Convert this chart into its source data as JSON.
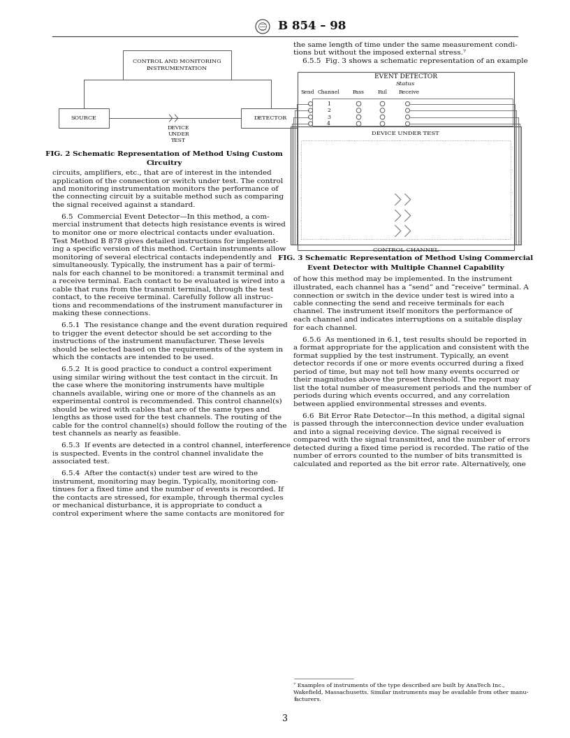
{
  "page_width": 8.16,
  "page_height": 10.56,
  "dpi": 100,
  "bg_color": "#ffffff",
  "header_title": "B 854 – 98",
  "page_number": "3",
  "fig2_caption_line1": "FIG. 2 Schematic Representation of Method Using Custom",
  "fig2_caption_line2": "Circuitry",
  "fig3_caption_line1": "FIG. 3 Schematic Representation of Method Using Commercial",
  "fig3_caption_line2": "Event Detector with Multiple Channel Capability",
  "footnote_line1": "⁷ Examples of instruments of the type described are built by AnaTech Inc.,",
  "footnote_line2": "Wakefield, Massachusetts. Similar instruments may be available from other manu-",
  "footnote_line3": "facturers.",
  "left_col_paragraphs": [
    "circuits, amplifiers, etc., that are of interest in the intended\napplication of the connection or switch under test. The control\nand monitoring instrumentation monitors the performance of\nthe connecting circuit by a suitable method such as comparing\nthe signal received against a standard.",
    "    6.5  Commercial Event Detector—In this method, a com-\nmercial instrument that detects high resistance events is wired\nto monitor one or more electrical contacts under evaluation.\nTest Method B 878 gives detailed instructions for implement-\ning a specific version of this method. Certain instruments allow\nmonitoring of several electrical contacts independently and\nsimultaneously. Typically, the instrument has a pair of termi-\nnals for each channel to be monitored: a transmit terminal and\na receive terminal. Each contact to be evaluated is wired into a\ncable that runs from the transmit terminal, through the test\ncontact, to the receive terminal. Carefully follow all instruc-\ntions and recommendations of the instrument manufacturer in\nmaking these connections.",
    "    6.5.1  The resistance change and the event duration required\nto trigger the event detector should be set according to the\ninstructions of the instrument manufacturer. These levels\nshould be selected based on the requirements of the system in\nwhich the contacts are intended to be used.",
    "    6.5.2  It is good practice to conduct a control experiment\nusing similar wiring without the test contact in the circuit. In\nthe case where the monitoring instruments have multiple\nchannels available, wiring one or more of the channels as an\nexperimental control is recommended. This control channel(s)\nshould be wired with cables that are of the same types and\nlengths as those used for the test channels. The routing of the\ncable for the control channel(s) should follow the routing of the\ntest channels as nearly as feasible.",
    "    6.5.3  If events are detected in a control channel, interference\nis suspected. Events in the control channel invalidate the\nassociated test.",
    "    6.5.4  After the contact(s) under test are wired to the\ninstrument, monitoring may begin. Typically, monitoring con-\ntinues for a fixed time and the number of events is recorded. If\nthe contacts are stressed, for example, through thermal cycles\nor mechanical disturbance, it is appropriate to conduct a\ncontrol experiment where the same contacts are monitored for"
  ],
  "right_top_lines": [
    "the same length of time under the same measurement condi-",
    "tions but without the imposed external stress.⁷",
    "    6.5.5  Fig. 3 shows a schematic representation of an example"
  ],
  "right_col_paragraphs": [
    "of how this method may be implemented. In the instrument\nillustrated, each channel has a “send” and “receive” terminal. A\nconnection or switch in the device under test is wired into a\ncable connecting the send and receive terminals for each\nchannel. The instrument itself monitors the performance of\neach channel and indicates interruptions on a suitable display\nfor each channel.",
    "    6.5.6  As mentioned in 6.1, test results should be reported in\na format appropriate for the application and consistent with the\nformat supplied by the test instrument. Typically, an event\ndetector records if one or more events occurred during a fixed\nperiod of time, but may not tell how many events occurred or\ntheir magnitudes above the preset threshold. The report may\nlist the total number of measurement periods and the number of\nperiods during which events occurred, and any correlation\nbetween applied environmental stresses and events.",
    "    6.6  Bit Error Rate Detector—In this method, a digital signal\nis passed through the interconnection device under evaluation\nand into a signal receiving device. The signal received is\ncompared with the signal transmitted, and the number of errors\ndetected during a fixed time period is recorded. The ratio of the\nnumber of errors counted to the number of bits transmitted is\ncalculated and reported as the bit error rate. Alternatively, one"
  ]
}
